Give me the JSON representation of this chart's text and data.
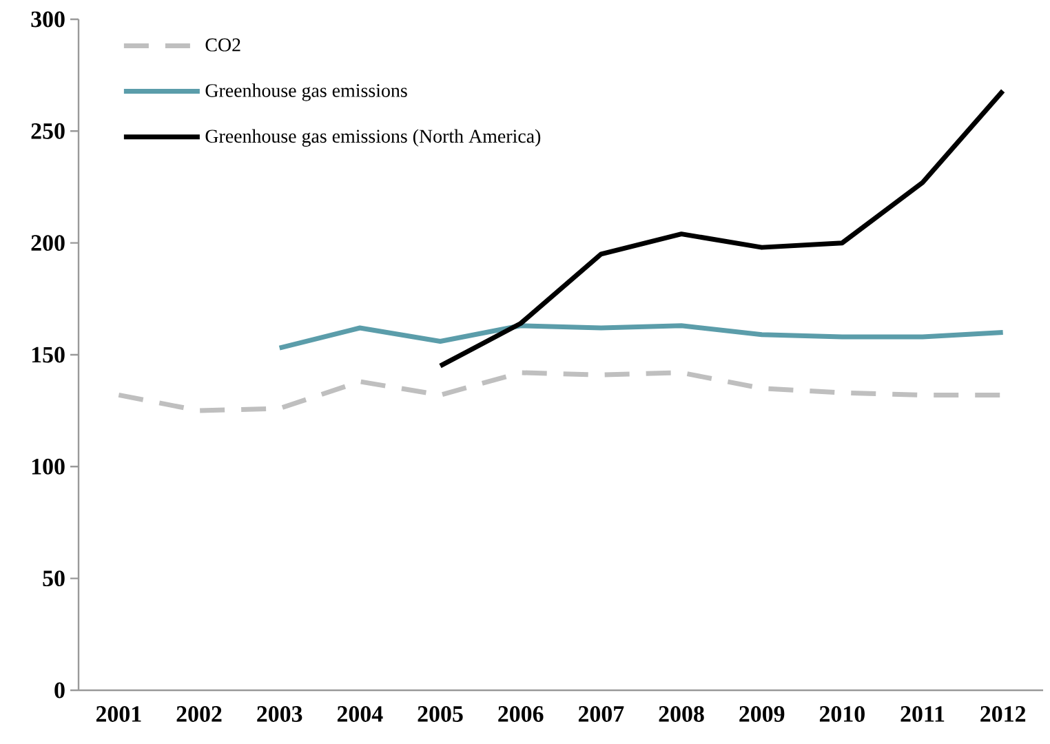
{
  "chart_data": {
    "type": "line",
    "categories": [
      "2001",
      "2002",
      "2003",
      "2004",
      "2005",
      "2006",
      "2007",
      "2008",
      "2009",
      "2010",
      "2011",
      "2012"
    ],
    "ylim": [
      0,
      300
    ],
    "yticks": [
      0,
      50,
      100,
      150,
      200,
      250,
      300
    ],
    "grid": false,
    "legend": "top left",
    "marker": "none",
    "series": [
      {
        "name": "CO2",
        "color": "#bfbfbf",
        "line_style": "dashed",
        "values": [
          132,
          125,
          126,
          138,
          132,
          142,
          141,
          142,
          135,
          133,
          132,
          132
        ]
      },
      {
        "name": "Greenhouse gas emissions",
        "color": "#5b9daa",
        "line_style": "solid",
        "values": [
          null,
          null,
          153,
          162,
          156,
          163,
          162,
          163,
          159,
          158,
          158,
          160
        ]
      },
      {
        "name": "Greenhouse gas emissions (North America)",
        "color": "#000000",
        "line_style": "solid",
        "values": [
          null,
          null,
          null,
          null,
          145,
          164,
          195,
          204,
          198,
          200,
          227,
          268
        ]
      }
    ]
  }
}
